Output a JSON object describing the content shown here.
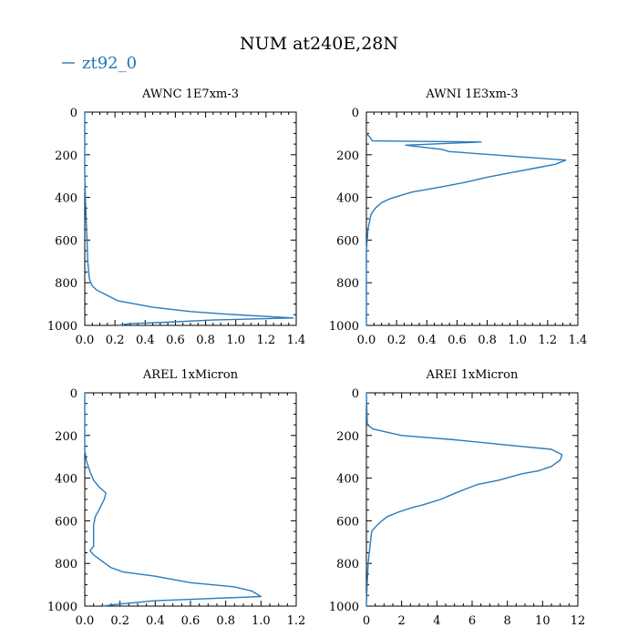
{
  "figure": {
    "title": "NUM at240E,28N",
    "legend_label": "zt92_0",
    "legend_color": "#2b7bba"
  },
  "chart_data": [
    {
      "type": "line",
      "title": "AWNC  1E7xm-3",
      "xlim": [
        0,
        1.4
      ],
      "ylim": [
        1000,
        0
      ],
      "y_inverted": true,
      "x_ticks": [
        0,
        0.2,
        0.4,
        0.6,
        0.8,
        1.0,
        1.2,
        1.4
      ],
      "x_tick_labels": [
        "0.0",
        "0.2",
        "0.4",
        "0.6",
        "0.8",
        "1.0",
        "1.2",
        "1.4"
      ],
      "y_ticks": [
        0,
        200,
        400,
        600,
        800,
        1000
      ],
      "y_tick_labels": [
        "0",
        "200",
        "400",
        "600",
        "800",
        "1000"
      ],
      "grid": false,
      "series": [
        {
          "name": "zt92_0",
          "x": [
            0.0,
            0.0,
            0.005,
            0.01,
            0.015,
            0.02,
            0.03,
            0.04,
            0.05,
            0.08,
            0.22,
            0.45,
            0.7,
            0.95,
            1.2,
            1.38,
            0.85,
            0.55,
            0.3,
            0.22
          ],
          "y": [
            0,
            300,
            420,
            520,
            600,
            700,
            780,
            800,
            815,
            835,
            885,
            915,
            935,
            948,
            958,
            965,
            975,
            985,
            992,
            1000
          ]
        }
      ]
    },
    {
      "type": "line",
      "title": "AWNI  1E3xm-3",
      "xlim": [
        0,
        1.4
      ],
      "ylim": [
        1000,
        0
      ],
      "y_inverted": true,
      "x_ticks": [
        0,
        0.2,
        0.4,
        0.6,
        0.8,
        1.0,
        1.2,
        1.4
      ],
      "x_tick_labels": [
        "0.0",
        "0.2",
        "0.4",
        "0.6",
        "0.8",
        "1.0",
        "1.2",
        "1.4"
      ],
      "y_ticks": [
        0,
        200,
        400,
        600,
        800,
        1000
      ],
      "y_tick_labels": [
        "0",
        "200",
        "400",
        "600",
        "800",
        "1000"
      ],
      "grid": false,
      "series": [
        {
          "name": "zt92_0",
          "x": [
            0.0,
            0.02,
            0.04,
            0.76,
            0.26,
            0.5,
            0.55,
            1.32,
            1.25,
            1.1,
            0.95,
            0.8,
            0.65,
            0.5,
            0.3,
            0.16,
            0.1,
            0.06,
            0.03,
            0.01,
            0.0,
            0.0
          ],
          "y": [
            100,
            115,
            135,
            140,
            155,
            175,
            185,
            225,
            245,
            265,
            285,
            305,
            330,
            350,
            375,
            405,
            425,
            450,
            480,
            550,
            650,
            1000
          ]
        }
      ]
    },
    {
      "type": "line",
      "title": "AREL  1xMicron",
      "xlim": [
        0,
        1.2
      ],
      "ylim": [
        1000,
        0
      ],
      "y_inverted": true,
      "x_ticks": [
        0,
        0.2,
        0.4,
        0.6,
        0.8,
        1.0,
        1.2
      ],
      "x_tick_labels": [
        "0.0",
        "0.2",
        "0.4",
        "0.6",
        "0.8",
        "1.0",
        "1.2"
      ],
      "y_ticks": [
        0,
        200,
        400,
        600,
        800,
        1000
      ],
      "y_tick_labels": [
        "0",
        "200",
        "400",
        "600",
        "800",
        "1000"
      ],
      "grid": false,
      "series": [
        {
          "name": "zt92_0",
          "x": [
            0.0,
            0.0,
            0.01,
            0.03,
            0.05,
            0.08,
            0.12,
            0.11,
            0.08,
            0.06,
            0.05,
            0.05,
            0.05,
            0.03,
            0.05,
            0.1,
            0.15,
            0.22,
            0.4,
            0.6,
            0.85,
            0.95,
            1.0,
            0.7,
            0.4,
            0.2,
            0.1
          ],
          "y": [
            0,
            270,
            320,
            370,
            410,
            440,
            470,
            500,
            550,
            580,
            620,
            680,
            720,
            740,
            760,
            790,
            820,
            840,
            860,
            890,
            910,
            930,
            955,
            965,
            975,
            990,
            1000
          ]
        }
      ]
    },
    {
      "type": "line",
      "title": "AREI  1xMicron",
      "xlim": [
        0,
        12
      ],
      "ylim": [
        1000,
        0
      ],
      "y_inverted": true,
      "x_ticks": [
        0,
        2,
        4,
        6,
        8,
        10,
        12
      ],
      "x_tick_labels": [
        "0",
        "2",
        "4",
        "6",
        "8",
        "10",
        "12"
      ],
      "y_ticks": [
        0,
        200,
        400,
        600,
        800,
        1000
      ],
      "y_tick_labels": [
        "0",
        "200",
        "400",
        "600",
        "800",
        "1000"
      ],
      "grid": false,
      "series": [
        {
          "name": "zt92_0",
          "x": [
            0.0,
            0.05,
            0.4,
            2.0,
            5.0,
            8.0,
            10.5,
            11.1,
            11.0,
            10.5,
            9.8,
            8.8,
            7.5,
            6.3,
            5.2,
            4.2,
            3.2,
            2.5,
            1.8,
            1.2,
            0.8,
            0.5,
            0.3,
            0.2,
            0.1,
            0.05,
            0.0
          ],
          "y": [
            0,
            150,
            170,
            200,
            220,
            245,
            265,
            290,
            315,
            345,
            365,
            380,
            410,
            430,
            465,
            500,
            525,
            540,
            560,
            580,
            605,
            630,
            650,
            720,
            800,
            880,
            1000
          ]
        }
      ]
    }
  ]
}
